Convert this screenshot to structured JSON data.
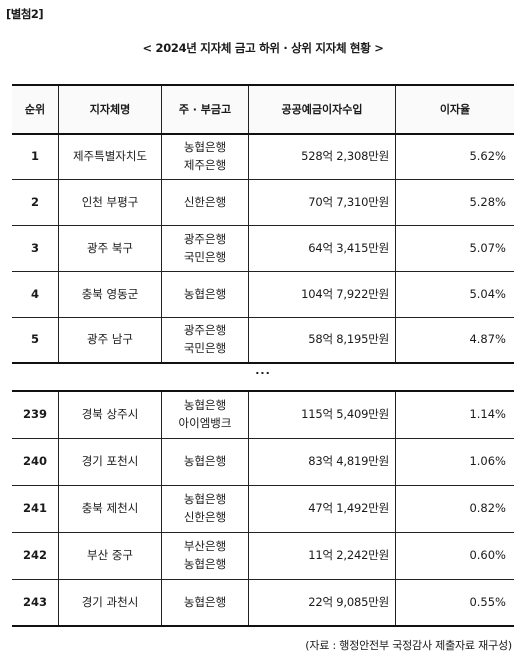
{
  "tag": "[별첨2]",
  "title": "< 2024년 지자체 금고 하위 · 상위 지자체 현황 >",
  "columns": [
    "순위",
    "지자체명",
    "주 · 부금고",
    "공공예금이자수입",
    "이자율"
  ],
  "ellipsis": "...",
  "top_rows": [
    {
      "rank": "1",
      "name": "제주특별자치도",
      "banks": [
        "농협은행",
        "제주은행"
      ],
      "income": "528억 2,308만원",
      "rate": "5.62%"
    },
    {
      "rank": "2",
      "name": "인천 부평구",
      "banks": [
        "신한은행"
      ],
      "income": "70억 7,310만원",
      "rate": "5.28%"
    },
    {
      "rank": "3",
      "name": "광주 북구",
      "banks": [
        "광주은행",
        "국민은행"
      ],
      "income": "64억 3,415만원",
      "rate": "5.07%"
    },
    {
      "rank": "4",
      "name": "충북 영동군",
      "banks": [
        "농협은행"
      ],
      "income": "104억 7,922만원",
      "rate": "5.04%"
    },
    {
      "rank": "5",
      "name": "광주 남구",
      "banks": [
        "광주은행",
        "국민은행"
      ],
      "income": "58억 8,195만원",
      "rate": "4.87%"
    }
  ],
  "bottom_rows": [
    {
      "rank": "239",
      "name": "경북 상주시",
      "banks": [
        "농협은행",
        "아이엠뱅크"
      ],
      "income": "115억 5,409만원",
      "rate": "1.14%"
    },
    {
      "rank": "240",
      "name": "경기 포천시",
      "banks": [
        "농협은행"
      ],
      "income": "83억 4,819만원",
      "rate": "1.06%"
    },
    {
      "rank": "241",
      "name": "충북 제천시",
      "banks": [
        "농협은행",
        "신한은행"
      ],
      "income": "47억 1,492만원",
      "rate": "0.82%"
    },
    {
      "rank": "242",
      "name": "부산 중구",
      "banks": [
        "부산은행",
        "농협은행"
      ],
      "income": "11억 2,242만원",
      "rate": "0.60%"
    },
    {
      "rank": "243",
      "name": "경기 과천시",
      "banks": [
        "농협은행"
      ],
      "income": "22억 9,085만원",
      "rate": "0.55%"
    }
  ],
  "source": "(자료 : 행정안전부 국정감사 제출자료 재구성)"
}
